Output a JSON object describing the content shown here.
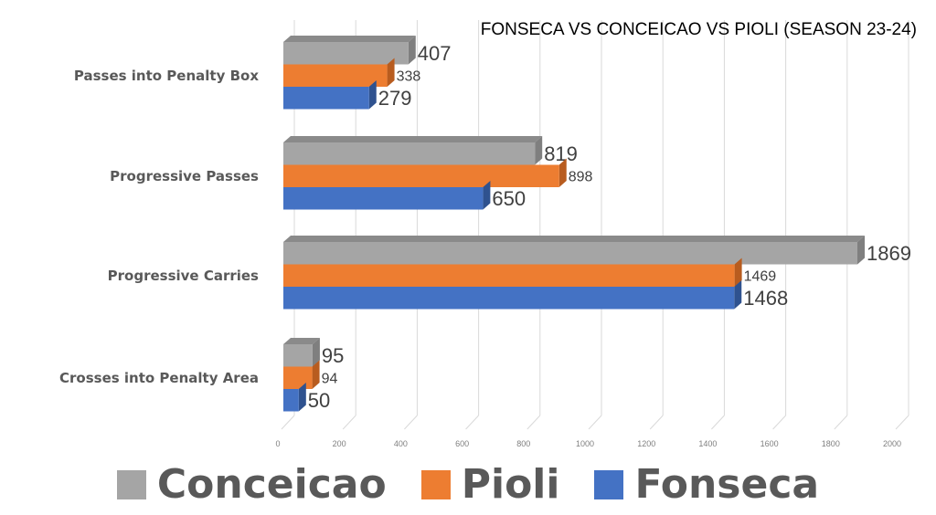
{
  "chart_data": {
    "type": "bar",
    "orientation": "horizontal",
    "style": "3d-clustered",
    "title": "FONSECA VS CONCEICAO VS PIOLI (SEASON 23-24)",
    "categories": [
      "Passes into Penalty Box",
      "Progressive Passes",
      "Progressive Carries",
      "Crosses into Penalty Area"
    ],
    "series": [
      {
        "name": "Conceicao",
        "color": "#a5a5a5",
        "values": [
          407,
          819,
          1869,
          95
        ]
      },
      {
        "name": "Pioli",
        "color": "#ed7d31",
        "values": [
          338,
          898,
          1469,
          94
        ]
      },
      {
        "name": "Fonseca",
        "color": "#4472c4",
        "values": [
          279,
          650,
          1468,
          50
        ]
      }
    ],
    "xlim": [
      0,
      2000
    ],
    "xticks": [
      "0",
      "200",
      "400",
      "600",
      "800",
      "1000",
      "1200",
      "1400",
      "1600",
      "1800",
      "2000"
    ],
    "grid": true,
    "data_labels": true,
    "legend": "bottom"
  }
}
